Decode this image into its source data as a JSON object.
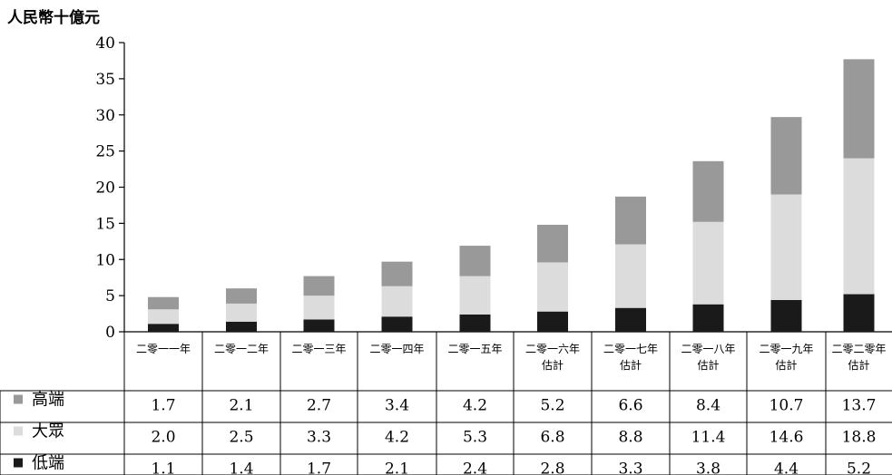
{
  "chart_data": {
    "type": "bar",
    "stacked": true,
    "ylabel": "人民幣十億元",
    "ylim": [
      0,
      40
    ],
    "yticks": [
      "0",
      "5",
      "10",
      "15",
      "20",
      "25",
      "30",
      "35",
      "40"
    ],
    "categories": [
      [
        "二零一一年"
      ],
      [
        "二零一二年"
      ],
      [
        "二零一三年"
      ],
      [
        "二零一四年"
      ],
      [
        "二零一五年"
      ],
      [
        "二零一六年",
        "估計"
      ],
      [
        "二零一七年",
        "估計"
      ],
      [
        "二零一八年",
        "估計"
      ],
      [
        "二零一九年",
        "估計"
      ],
      [
        "二零二零年",
        "估計"
      ]
    ],
    "series": [
      {
        "name": "低端",
        "color": "#1a1a1a",
        "values": [
          1.1,
          1.4,
          1.7,
          2.1,
          2.4,
          2.8,
          3.3,
          3.8,
          4.4,
          5.2
        ]
      },
      {
        "name": "大眾",
        "color": "#dcdcdc",
        "values": [
          2.0,
          2.5,
          3.3,
          4.2,
          5.3,
          6.8,
          8.8,
          11.4,
          14.6,
          18.8
        ]
      },
      {
        "name": "高端",
        "color": "#999999",
        "values": [
          1.7,
          2.1,
          2.7,
          3.4,
          4.2,
          5.2,
          6.6,
          8.4,
          10.7,
          13.7
        ]
      }
    ],
    "table_order": [
      "高端",
      "大眾",
      "低端"
    ],
    "grid": false,
    "legend": "table-left"
  }
}
